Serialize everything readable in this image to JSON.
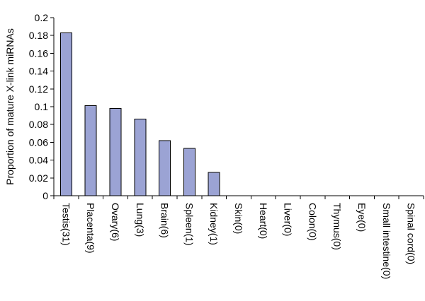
{
  "chart_data": {
    "type": "bar",
    "title": "",
    "xlabel": "",
    "ylabel": "Proportion of mature X-link miRNAs",
    "categories": [
      "Testis(31)",
      "Placenta(9)",
      "Ovary(6)",
      "Lung(3)",
      "Brain(6)",
      "Spleen(1)",
      "Kidney(1)",
      "Skin(0)",
      "Heart(0)",
      "Liver(0)",
      "Colon(0)",
      "Thymus(0)",
      "Eye(0)",
      "Small intestine(0)",
      "Spinal cord(0)"
    ],
    "values": [
      0.183,
      0.101,
      0.098,
      0.086,
      0.062,
      0.053,
      0.026,
      0,
      0,
      0,
      0,
      0,
      0,
      0,
      0
    ],
    "ylim": [
      0,
      0.2
    ],
    "yticks": [
      0,
      0.02,
      0.04,
      0.06,
      0.08,
      0.1,
      0.12,
      0.14,
      0.16,
      0.18,
      0.2
    ],
    "ytick_labels": [
      "0",
      "0.02",
      "0.04",
      "0.06",
      "0.08",
      "0.1",
      "0.12",
      "0.14",
      "0.16",
      "0.18",
      "0.2"
    ],
    "bar_color": "#9ba3d4",
    "bar_edge_color": "#000000",
    "grid": false,
    "legend": false
  }
}
